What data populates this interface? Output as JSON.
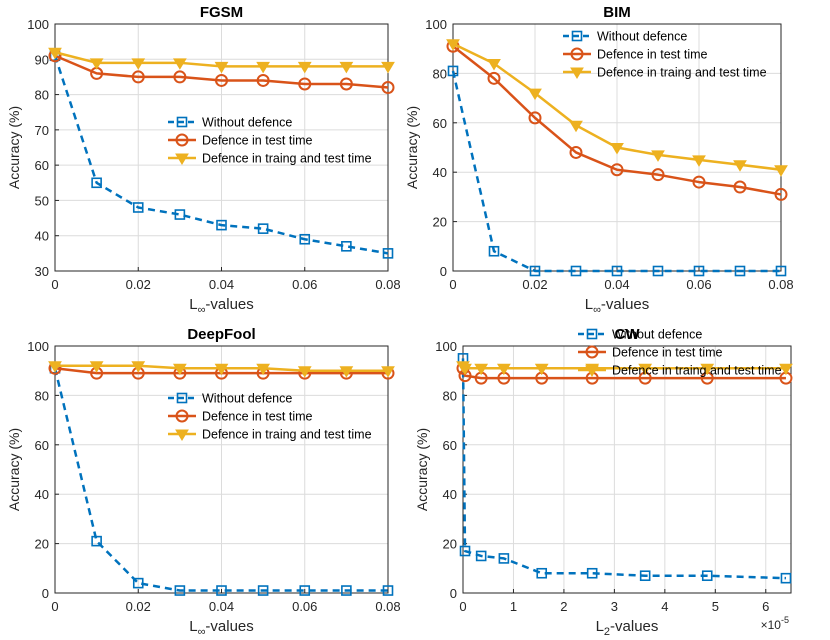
{
  "figure": {
    "colors": {
      "without": "#0072BD",
      "test": "#D95319",
      "train": "#EDB120",
      "grid": "#dcdcdc",
      "axis": "#262626"
    }
  },
  "chart_data": [
    {
      "type": "line",
      "title": "FGSM",
      "ylabel": "Accuracy (%)",
      "xlabel_main": "L",
      "xlabel_sub": "∞",
      "xlabel_rest": "-values",
      "xlim": [
        0,
        0.08
      ],
      "ylim": [
        30,
        100
      ],
      "xticks": [
        0,
        0.02,
        0.04,
        0.06,
        0.08
      ],
      "xtick_labels": [
        "0",
        "0.02",
        "0.04",
        "0.06",
        "0.08"
      ],
      "yticks": [
        30,
        40,
        50,
        60,
        70,
        80,
        90,
        100
      ],
      "ytick_labels": [
        "30",
        "40",
        "50",
        "60",
        "70",
        "80",
        "90",
        "100"
      ],
      "x_exponent": "",
      "legend": "center-right",
      "series": [
        {
          "name": "Without defence",
          "style": "without",
          "x": [
            0,
            0.01,
            0.02,
            0.03,
            0.04,
            0.05,
            0.06,
            0.07,
            0.08
          ],
          "values": [
            91,
            55,
            48,
            46,
            43,
            42,
            39,
            37,
            35
          ]
        },
        {
          "name": "Defence in test time",
          "style": "test",
          "x": [
            0,
            0.01,
            0.02,
            0.03,
            0.04,
            0.05,
            0.06,
            0.07,
            0.08
          ],
          "values": [
            91,
            86,
            85,
            85,
            84,
            84,
            83,
            83,
            82
          ]
        },
        {
          "name": "Defence in traing and test time",
          "style": "train",
          "x": [
            0,
            0.01,
            0.02,
            0.03,
            0.04,
            0.05,
            0.06,
            0.07,
            0.08
          ],
          "values": [
            92,
            89,
            89,
            89,
            88,
            88,
            88,
            88,
            88
          ]
        }
      ]
    },
    {
      "type": "line",
      "title": "BIM",
      "ylabel": "Accuracy (%)",
      "xlabel_main": "L",
      "xlabel_sub": "∞",
      "xlabel_rest": "-values",
      "xlim": [
        0,
        0.08
      ],
      "ylim": [
        0,
        100
      ],
      "xticks": [
        0,
        0.02,
        0.04,
        0.06,
        0.08
      ],
      "xtick_labels": [
        "0",
        "0.02",
        "0.04",
        "0.06",
        "0.08"
      ],
      "yticks": [
        0,
        20,
        40,
        60,
        80,
        100
      ],
      "ytick_labels": [
        "0",
        "20",
        "40",
        "60",
        "80",
        "100"
      ],
      "x_exponent": "",
      "legend": "top-right",
      "series": [
        {
          "name": "Without defence",
          "style": "without",
          "x": [
            0,
            0.01,
            0.02,
            0.03,
            0.04,
            0.05,
            0.06,
            0.07,
            0.08
          ],
          "values": [
            81,
            8,
            0,
            0,
            0,
            0,
            0,
            0,
            0
          ]
        },
        {
          "name": "Defence in test time",
          "style": "test",
          "x": [
            0,
            0.01,
            0.02,
            0.03,
            0.04,
            0.05,
            0.06,
            0.07,
            0.08
          ],
          "values": [
            91,
            78,
            62,
            48,
            41,
            39,
            36,
            34,
            31
          ]
        },
        {
          "name": "Defence in traing and test time",
          "style": "train",
          "x": [
            0,
            0.01,
            0.02,
            0.03,
            0.04,
            0.05,
            0.06,
            0.07,
            0.08
          ],
          "values": [
            92,
            84,
            72,
            59,
            50,
            47,
            45,
            43,
            41
          ]
        }
      ]
    },
    {
      "type": "line",
      "title": "DeepFool",
      "ylabel": "Accuracy (%)",
      "xlabel_main": "L",
      "xlabel_sub": "∞",
      "xlabel_rest": "-values",
      "xlim": [
        0,
        0.08
      ],
      "ylim": [
        0,
        100
      ],
      "xticks": [
        0,
        0.02,
        0.04,
        0.06,
        0.08
      ],
      "xtick_labels": [
        "0",
        "0.02",
        "0.04",
        "0.06",
        "0.08"
      ],
      "yticks": [
        0,
        20,
        40,
        60,
        80,
        100
      ],
      "ytick_labels": [
        "0",
        "20",
        "40",
        "60",
        "80",
        "100"
      ],
      "x_exponent": "",
      "legend": "center-right",
      "series": [
        {
          "name": "Without defence",
          "style": "without",
          "x": [
            0,
            0.01,
            0.02,
            0.03,
            0.04,
            0.05,
            0.06,
            0.07,
            0.08
          ],
          "values": [
            91,
            21,
            4,
            1,
            1,
            1,
            1,
            1,
            1
          ]
        },
        {
          "name": "Defence in test time",
          "style": "test",
          "x": [
            0,
            0.01,
            0.02,
            0.03,
            0.04,
            0.05,
            0.06,
            0.07,
            0.08
          ],
          "values": [
            91,
            89,
            89,
            89,
            89,
            89,
            89,
            89,
            89
          ]
        },
        {
          "name": "Defence in traing and test time",
          "style": "train",
          "x": [
            0,
            0.01,
            0.02,
            0.03,
            0.04,
            0.05,
            0.06,
            0.07,
            0.08
          ],
          "values": [
            92,
            92,
            92,
            91,
            91,
            91,
            90,
            90,
            90
          ]
        }
      ]
    },
    {
      "type": "line",
      "title": "CW",
      "ylabel": "Accuracy (%)",
      "xlabel_main": "L",
      "xlabel_sub": "2",
      "xlabel_rest": "-values",
      "xlim": [
        0,
        6.5
      ],
      "ylim": [
        0,
        100
      ],
      "xticks": [
        0,
        1,
        2,
        3,
        4,
        5,
        6
      ],
      "xtick_labels": [
        "0",
        "1",
        "2",
        "3",
        "4",
        "5",
        "6"
      ],
      "yticks": [
        0,
        20,
        40,
        60,
        80,
        100
      ],
      "ytick_labels": [
        "0",
        "20",
        "40",
        "60",
        "80",
        "100"
      ],
      "x_exponent_base": "×10",
      "x_exponent": "-5",
      "legend": "top-right",
      "series": [
        {
          "name": "Without defence",
          "style": "without",
          "x": [
            0,
            0.04,
            0.36,
            0.81,
            1.56,
            2.56,
            3.61,
            4.84,
            6.4
          ],
          "values": [
            95,
            17,
            15,
            14,
            8,
            8,
            7,
            7,
            6
          ]
        },
        {
          "name": "Defence in test time",
          "style": "test",
          "x": [
            0,
            0.04,
            0.36,
            0.81,
            1.56,
            2.56,
            3.61,
            4.84,
            6.4
          ],
          "values": [
            91,
            88,
            87,
            87,
            87,
            87,
            87,
            87,
            87
          ]
        },
        {
          "name": "Defence in traing and test time",
          "style": "train",
          "x": [
            0,
            0.04,
            0.36,
            0.81,
            1.56,
            2.56,
            3.61,
            4.84,
            6.4
          ],
          "values": [
            92,
            91,
            91,
            91,
            91,
            91,
            91,
            91,
            91
          ]
        }
      ]
    }
  ]
}
